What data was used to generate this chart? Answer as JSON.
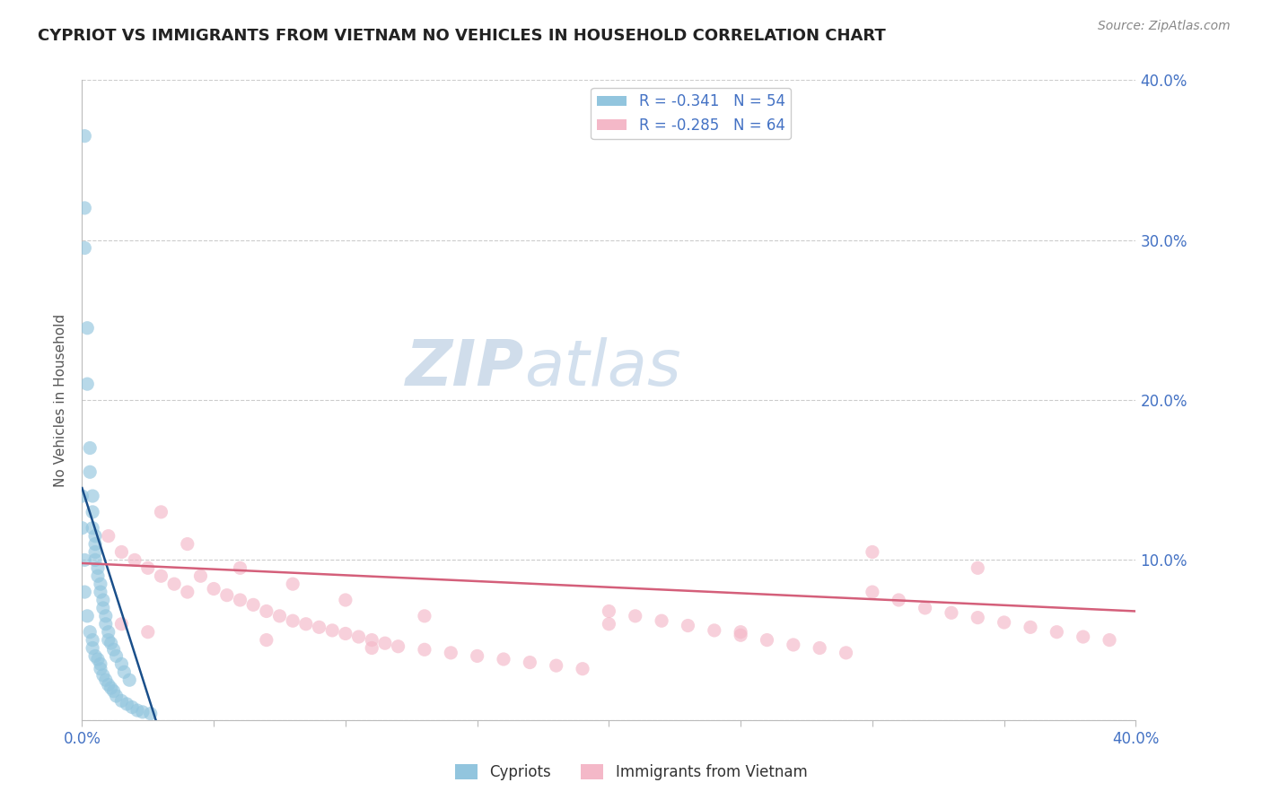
{
  "title": "CYPRIOT VS IMMIGRANTS FROM VIETNAM NO VEHICLES IN HOUSEHOLD CORRELATION CHART",
  "source": "Source: ZipAtlas.com",
  "ylabel": "No Vehicles in Household",
  "xlim": [
    0.0,
    0.4
  ],
  "ylim": [
    0.0,
    0.4
  ],
  "color_cypriot": "#92c5de",
  "color_vietnam": "#f4b8c8",
  "line_color_cypriot": "#1a4f8a",
  "line_color_vietnam": "#d45f7a",
  "legend_r_cypriot": "R = -0.341",
  "legend_n_cypriot": "N = 54",
  "legend_r_vietnam": "R = -0.285",
  "legend_n_vietnam": "N = 64",
  "watermark_zip": "ZIP",
  "watermark_atlas": "atlas",
  "background_color": "#ffffff",
  "grid_color": "#cccccc",
  "cypriot_x": [
    0.001,
    0.001,
    0.001,
    0.002,
    0.002,
    0.003,
    0.003,
    0.004,
    0.004,
    0.004,
    0.005,
    0.005,
    0.005,
    0.005,
    0.006,
    0.006,
    0.007,
    0.007,
    0.008,
    0.008,
    0.009,
    0.009,
    0.01,
    0.01,
    0.011,
    0.012,
    0.013,
    0.015,
    0.016,
    0.018,
    0.0,
    0.0,
    0.001,
    0.001,
    0.002,
    0.003,
    0.004,
    0.004,
    0.005,
    0.006,
    0.007,
    0.007,
    0.008,
    0.009,
    0.01,
    0.011,
    0.012,
    0.013,
    0.015,
    0.017,
    0.019,
    0.021,
    0.023,
    0.026
  ],
  "cypriot_y": [
    0.365,
    0.32,
    0.295,
    0.245,
    0.21,
    0.17,
    0.155,
    0.14,
    0.13,
    0.12,
    0.115,
    0.11,
    0.105,
    0.1,
    0.095,
    0.09,
    0.085,
    0.08,
    0.075,
    0.07,
    0.065,
    0.06,
    0.055,
    0.05,
    0.048,
    0.044,
    0.04,
    0.035,
    0.03,
    0.025,
    0.14,
    0.12,
    0.1,
    0.08,
    0.065,
    0.055,
    0.05,
    0.045,
    0.04,
    0.038,
    0.035,
    0.032,
    0.028,
    0.025,
    0.022,
    0.02,
    0.018,
    0.015,
    0.012,
    0.01,
    0.008,
    0.006,
    0.005,
    0.004
  ],
  "vietnam_x": [
    0.01,
    0.015,
    0.02,
    0.025,
    0.03,
    0.035,
    0.04,
    0.045,
    0.05,
    0.055,
    0.06,
    0.065,
    0.07,
    0.075,
    0.08,
    0.085,
    0.09,
    0.095,
    0.1,
    0.105,
    0.11,
    0.115,
    0.12,
    0.13,
    0.14,
    0.15,
    0.16,
    0.17,
    0.18,
    0.19,
    0.2,
    0.21,
    0.22,
    0.23,
    0.24,
    0.25,
    0.26,
    0.27,
    0.28,
    0.29,
    0.3,
    0.31,
    0.32,
    0.33,
    0.34,
    0.35,
    0.36,
    0.37,
    0.38,
    0.39,
    0.03,
    0.04,
    0.06,
    0.08,
    0.1,
    0.13,
    0.2,
    0.25,
    0.3,
    0.34,
    0.015,
    0.025,
    0.07,
    0.11
  ],
  "vietnam_y": [
    0.115,
    0.105,
    0.1,
    0.095,
    0.09,
    0.085,
    0.08,
    0.09,
    0.082,
    0.078,
    0.075,
    0.072,
    0.068,
    0.065,
    0.062,
    0.06,
    0.058,
    0.056,
    0.054,
    0.052,
    0.05,
    0.048,
    0.046,
    0.044,
    0.042,
    0.04,
    0.038,
    0.036,
    0.034,
    0.032,
    0.068,
    0.065,
    0.062,
    0.059,
    0.056,
    0.053,
    0.05,
    0.047,
    0.045,
    0.042,
    0.08,
    0.075,
    0.07,
    0.067,
    0.064,
    0.061,
    0.058,
    0.055,
    0.052,
    0.05,
    0.13,
    0.11,
    0.095,
    0.085,
    0.075,
    0.065,
    0.06,
    0.055,
    0.105,
    0.095,
    0.06,
    0.055,
    0.05,
    0.045
  ],
  "cypriot_line_x": [
    0.0,
    0.028
  ],
  "cypriot_line_y": [
    0.145,
    0.0
  ],
  "vietnam_line_x": [
    0.0,
    0.4
  ],
  "vietnam_line_y": [
    0.098,
    0.068
  ]
}
